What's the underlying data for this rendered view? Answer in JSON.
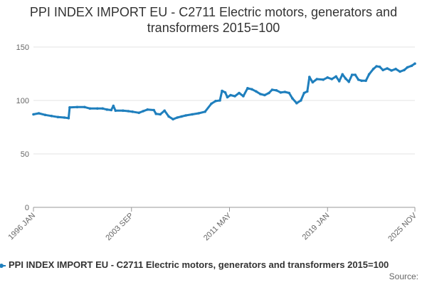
{
  "chart_data": {
    "type": "line",
    "title": "PPI INDEX IMPORT EU - C2711 Electric motors, generators and transformers 2015=100",
    "xlabel": "",
    "ylabel": "",
    "ylim": [
      0,
      150
    ],
    "yticks": [
      "0",
      "50",
      "100",
      "150"
    ],
    "xlim": [
      "1996-01",
      "2025-11"
    ],
    "xticks": [
      "1996 JAN",
      "2003 SEP",
      "2011 MAY",
      "2019 JAN",
      "2025 NOV"
    ],
    "grid": "horizontal",
    "legend_position": "bottom",
    "series": [
      {
        "name": "PPI INDEX IMPORT EU - C2711 Electric motors, generators and transformers 2015=100",
        "color": "#1f7fbd",
        "points": [
          [
            "1996-01",
            87
          ],
          [
            "1996-06",
            88
          ],
          [
            "1996-12",
            86.5
          ],
          [
            "1997-06",
            85.5
          ],
          [
            "1997-12",
            84.5
          ],
          [
            "1998-06",
            84
          ],
          [
            "1998-10",
            83.5
          ],
          [
            "1998-11",
            93.5
          ],
          [
            "1999-06",
            93.8
          ],
          [
            "2000-01",
            93.8
          ],
          [
            "2000-06",
            92.5
          ],
          [
            "2001-01",
            92.5
          ],
          [
            "2001-06",
            92.5
          ],
          [
            "2001-10",
            91.5
          ],
          [
            "2002-02",
            91
          ],
          [
            "2002-04",
            95
          ],
          [
            "2002-06",
            90.5
          ],
          [
            "2003-01",
            90.5
          ],
          [
            "2003-06",
            90
          ],
          [
            "2003-10",
            89.5
          ],
          [
            "2004-04",
            88.5
          ],
          [
            "2004-08",
            90
          ],
          [
            "2004-12",
            91.5
          ],
          [
            "2005-06",
            91
          ],
          [
            "2005-08",
            87.5
          ],
          [
            "2005-12",
            87
          ],
          [
            "2006-04",
            90.5
          ],
          [
            "2006-08",
            85
          ],
          [
            "2006-12",
            82.5
          ],
          [
            "2007-04",
            84
          ],
          [
            "2007-08",
            85
          ],
          [
            "2007-12",
            86
          ],
          [
            "2008-06",
            87
          ],
          [
            "2008-12",
            88
          ],
          [
            "2009-06",
            89.5
          ],
          [
            "2009-12",
            97
          ],
          [
            "2010-04",
            99.5
          ],
          [
            "2010-08",
            100
          ],
          [
            "2010-10",
            109
          ],
          [
            "2011-01",
            107.5
          ],
          [
            "2011-03",
            103
          ],
          [
            "2011-06",
            105
          ],
          [
            "2011-10",
            104
          ],
          [
            "2012-02",
            107
          ],
          [
            "2012-06",
            104
          ],
          [
            "2012-10",
            111.5
          ],
          [
            "2013-02",
            110.5
          ],
          [
            "2013-06",
            108.5
          ],
          [
            "2013-10",
            106
          ],
          [
            "2014-02",
            105
          ],
          [
            "2014-06",
            107
          ],
          [
            "2014-09",
            110
          ],
          [
            "2015-01",
            109.5
          ],
          [
            "2015-05",
            107.5
          ],
          [
            "2015-09",
            108
          ],
          [
            "2016-01",
            107
          ],
          [
            "2016-04",
            102
          ],
          [
            "2016-08",
            97.5
          ],
          [
            "2016-12",
            100
          ],
          [
            "2017-03",
            107
          ],
          [
            "2017-06",
            108.5
          ],
          [
            "2017-08",
            122
          ],
          [
            "2017-11",
            117
          ],
          [
            "2018-03",
            120
          ],
          [
            "2018-09",
            119.5
          ],
          [
            "2019-01",
            121.5
          ],
          [
            "2019-05",
            120
          ],
          [
            "2019-09",
            122.5
          ],
          [
            "2019-12",
            118
          ],
          [
            "2020-03",
            124.5
          ],
          [
            "2020-06",
            120.5
          ],
          [
            "2020-09",
            117.5
          ],
          [
            "2020-12",
            124
          ],
          [
            "2021-03",
            124
          ],
          [
            "2021-06",
            119.5
          ],
          [
            "2021-09",
            118.5
          ],
          [
            "2022-01",
            118.5
          ],
          [
            "2022-04",
            124.5
          ],
          [
            "2022-08",
            129.5
          ],
          [
            "2022-11",
            132
          ],
          [
            "2023-02",
            131.5
          ],
          [
            "2023-05",
            128.5
          ],
          [
            "2023-09",
            130
          ],
          [
            "2024-01",
            128
          ],
          [
            "2024-05",
            129.5
          ],
          [
            "2024-09",
            127
          ],
          [
            "2025-01",
            128.5
          ],
          [
            "2025-04",
            131
          ],
          [
            "2025-08",
            132.5
          ],
          [
            "2025-11",
            134.5
          ]
        ]
      }
    ],
    "source_label": "Source:"
  }
}
